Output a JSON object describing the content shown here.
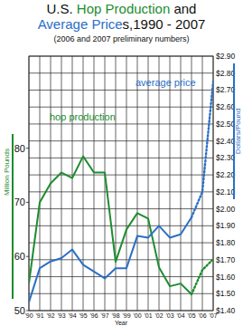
{
  "chart_data": {
    "type": "line",
    "title": "U.S. Hop Production and Average Prices,1990 - 2007",
    "subtitle": "(2006 and 2007 preliminary numbers)",
    "x_label": "Year",
    "y_label": "Million Pounds",
    "y2_label": "Dollars/Pound",
    "categories": [
      "'90",
      "'91",
      "'92",
      "'93",
      "'94",
      "'95",
      "'96",
      "'97",
      "'98",
      "'99",
      "'00",
      "'01",
      "'02",
      "'03",
      "'04",
      "'05",
      "'06",
      "'07"
    ],
    "series": [
      {
        "name": "hop production",
        "color": "#1e8c2e",
        "line_style": "solid",
        "values": [
          55,
          70,
          73.5,
          75.5,
          74.5,
          78.5,
          75.5,
          75.5,
          59,
          65,
          68,
          67,
          58,
          54.5,
          55,
          53,
          null,
          null
        ]
      },
      {
        "name": "average price",
        "color": "#2b6fc6",
        "line_style": "solid",
        "axis": "y2",
        "values": [
          1.45,
          1.65,
          1.69,
          1.71,
          1.76,
          1.67,
          1.63,
          1.59,
          1.65,
          1.65,
          1.84,
          1.83,
          1.9,
          1.83,
          1.85,
          1.95,
          null,
          null
        ]
      },
      {
        "color": "#1e8c2e",
        "line_style": "dotted",
        "values": [
          null,
          null,
          null,
          null,
          null,
          null,
          null,
          null,
          null,
          null,
          null,
          null,
          null,
          null,
          null,
          53,
          57.5,
          59.5
        ]
      },
      {
        "color": "#2b6fc6",
        "line_style": "dotted",
        "axis": "y2",
        "values": [
          null,
          null,
          null,
          null,
          null,
          null,
          null,
          null,
          null,
          null,
          null,
          null,
          null,
          null,
          null,
          1.95,
          2.1,
          2.75
        ]
      }
    ],
    "ylim": [
      50,
      97
    ],
    "yticks": [
      50,
      60,
      70,
      80
    ],
    "y2lim": [
      1.4,
      2.9
    ],
    "y2ticks": [
      {
        "value": 1.4,
        "label": "$1.40"
      },
      {
        "value": 1.5,
        "label": "$1.50"
      },
      {
        "value": 1.6,
        "label": "$1.60"
      },
      {
        "value": 1.7,
        "label": "$1.70"
      },
      {
        "value": 1.8,
        "label": "$1.80"
      },
      {
        "value": 1.9,
        "label": "$1.90"
      },
      {
        "value": 2.0,
        "label": "$2.00"
      },
      {
        "value": 2.1,
        "label": "$2.10"
      },
      {
        "value": 2.2,
        "label": "$2.20"
      },
      {
        "value": 2.3,
        "label": "$2.30"
      },
      {
        "value": 2.4,
        "label": "$2.40"
      },
      {
        "value": 2.5,
        "label": "$2.50"
      },
      {
        "value": 2.6,
        "label": "$2.60"
      },
      {
        "value": 2.7,
        "label": "$2.70"
      },
      {
        "value": 2.8,
        "label": "$2.80"
      },
      {
        "value": 2.9,
        "label": "$2.90"
      }
    ],
    "grid": true
  }
}
